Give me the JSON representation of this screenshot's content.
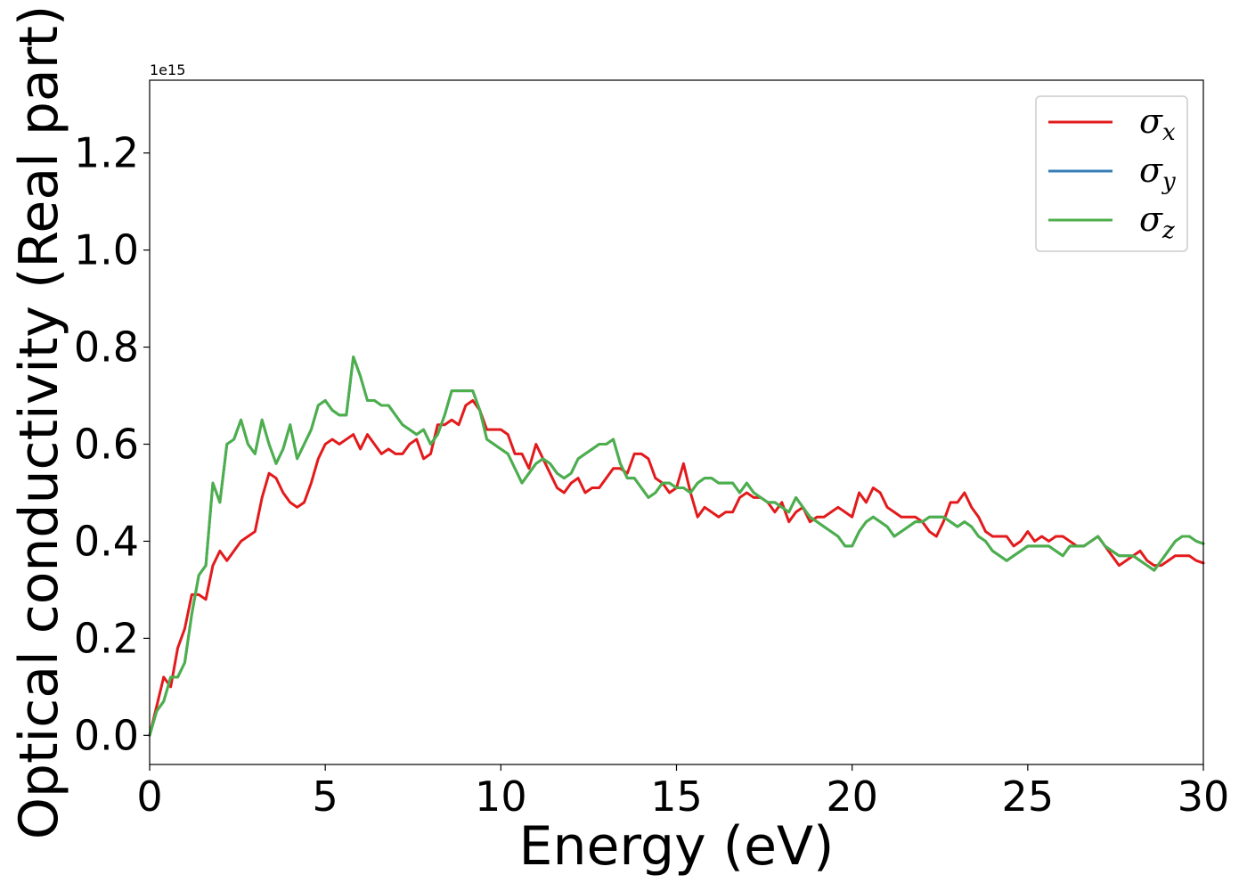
{
  "chart_data": {
    "type": "line",
    "xlabel": "Energy (eV)",
    "ylabel": "Optical conductivity (Real part)",
    "y_offset_text": "1e15",
    "xlim": [
      0,
      30
    ],
    "ylim": [
      -0.06,
      1.35
    ],
    "x_ticks": [
      0,
      5,
      10,
      15,
      20,
      25,
      30
    ],
    "x_tick_labels": [
      "0",
      "5",
      "10",
      "15",
      "20",
      "25",
      "30"
    ],
    "y_ticks": [
      0.0,
      0.2,
      0.4,
      0.6,
      0.8,
      1.0,
      1.2
    ],
    "y_tick_labels": [
      "0.0",
      "0.2",
      "0.4",
      "0.6",
      "0.8",
      "1.0",
      "1.2"
    ],
    "grid": false,
    "legend_position": "top-right",
    "x": [
      0.0,
      0.2,
      0.4,
      0.6,
      0.8,
      1.0,
      1.2,
      1.4,
      1.6,
      1.8,
      2.0,
      2.2,
      2.4,
      2.6,
      2.8,
      3.0,
      3.2,
      3.4,
      3.6,
      3.8,
      4.0,
      4.2,
      4.4,
      4.6,
      4.8,
      5.0,
      5.2,
      5.4,
      5.6,
      5.8,
      6.0,
      6.2,
      6.4,
      6.6,
      6.8,
      7.0,
      7.2,
      7.4,
      7.6,
      7.8,
      8.0,
      8.2,
      8.4,
      8.6,
      8.8,
      9.0,
      9.2,
      9.4,
      9.6,
      9.8,
      10.0,
      10.2,
      10.4,
      10.6,
      10.8,
      11.0,
      11.2,
      11.4,
      11.6,
      11.8,
      12.0,
      12.2,
      12.4,
      12.6,
      12.8,
      13.0,
      13.2,
      13.4,
      13.6,
      13.8,
      14.0,
      14.2,
      14.4,
      14.6,
      14.8,
      15.0,
      15.2,
      15.4,
      15.6,
      15.8,
      16.0,
      16.2,
      16.4,
      16.6,
      16.8,
      17.0,
      17.2,
      17.4,
      17.6,
      17.8,
      18.0,
      18.2,
      18.4,
      18.6,
      18.8,
      19.0,
      19.2,
      19.4,
      19.6,
      19.8,
      20.0,
      20.2,
      20.4,
      20.6,
      20.8,
      21.0,
      21.2,
      21.4,
      21.6,
      21.8,
      22.0,
      22.2,
      22.4,
      22.6,
      22.8,
      23.0,
      23.2,
      23.4,
      23.6,
      23.8,
      24.0,
      24.2,
      24.4,
      24.6,
      24.8,
      25.0,
      25.2,
      25.4,
      25.6,
      25.8,
      26.0,
      26.2,
      26.4,
      26.6,
      26.8,
      27.0,
      27.2,
      27.4,
      27.6,
      27.8,
      28.0,
      28.2,
      28.4,
      28.6,
      28.8,
      29.0,
      29.2,
      29.4,
      29.6,
      29.8,
      30.0
    ],
    "series": [
      {
        "name": "σx",
        "symbol": "σ",
        "subscript": "x",
        "color": "#e31a1c",
        "values": [
          0.0,
          0.06,
          0.12,
          0.1,
          0.18,
          0.22,
          0.29,
          0.29,
          0.28,
          0.35,
          0.38,
          0.36,
          0.38,
          0.4,
          0.41,
          0.42,
          0.49,
          0.54,
          0.53,
          0.5,
          0.48,
          0.47,
          0.48,
          0.52,
          0.57,
          0.6,
          0.61,
          0.6,
          0.61,
          0.62,
          0.59,
          0.62,
          0.6,
          0.58,
          0.59,
          0.58,
          0.58,
          0.6,
          0.61,
          0.57,
          0.58,
          0.64,
          0.64,
          0.65,
          0.64,
          0.68,
          0.69,
          0.67,
          0.63,
          0.63,
          0.63,
          0.62,
          0.58,
          0.58,
          0.55,
          0.6,
          0.57,
          0.54,
          0.51,
          0.5,
          0.52,
          0.53,
          0.5,
          0.51,
          0.51,
          0.53,
          0.55,
          0.55,
          0.54,
          0.58,
          0.58,
          0.57,
          0.53,
          0.52,
          0.5,
          0.51,
          0.56,
          0.5,
          0.45,
          0.47,
          0.46,
          0.45,
          0.46,
          0.46,
          0.49,
          0.5,
          0.49,
          0.49,
          0.48,
          0.46,
          0.48,
          0.44,
          0.46,
          0.47,
          0.44,
          0.45,
          0.45,
          0.46,
          0.47,
          0.46,
          0.45,
          0.5,
          0.48,
          0.51,
          0.5,
          0.47,
          0.46,
          0.45,
          0.45,
          0.45,
          0.44,
          0.42,
          0.41,
          0.44,
          0.48,
          0.48,
          0.5,
          0.47,
          0.45,
          0.42,
          0.41,
          0.41,
          0.41,
          0.39,
          0.4,
          0.42,
          0.4,
          0.41,
          0.4,
          0.41,
          0.41,
          0.4,
          0.39,
          0.39,
          0.4,
          0.41,
          0.39,
          0.37,
          0.35,
          0.36,
          0.37,
          0.38,
          0.36,
          0.35,
          0.35,
          0.36,
          0.37,
          0.37,
          0.37,
          0.36,
          0.355
        ]
      },
      {
        "name": "σy",
        "symbol": "σ",
        "subscript": "y",
        "color": "#377eb8",
        "values": [
          0.0,
          0.05,
          0.07,
          0.12,
          0.12,
          0.15,
          0.25,
          0.33,
          0.35,
          0.52,
          0.48,
          0.6,
          0.61,
          0.65,
          0.6,
          0.58,
          0.65,
          0.6,
          0.56,
          0.59,
          0.64,
          0.57,
          0.6,
          0.63,
          0.68,
          0.69,
          0.67,
          0.66,
          0.66,
          0.78,
          0.74,
          0.69,
          0.69,
          0.68,
          0.68,
          0.66,
          0.64,
          0.63,
          0.62,
          0.63,
          0.6,
          0.62,
          0.66,
          0.71,
          0.71,
          0.71,
          0.71,
          0.67,
          0.61,
          0.6,
          0.59,
          0.58,
          0.55,
          0.52,
          0.54,
          0.56,
          0.57,
          0.56,
          0.54,
          0.53,
          0.54,
          0.57,
          0.58,
          0.59,
          0.6,
          0.6,
          0.61,
          0.56,
          0.53,
          0.53,
          0.51,
          0.49,
          0.5,
          0.52,
          0.52,
          0.51,
          0.51,
          0.5,
          0.52,
          0.53,
          0.53,
          0.52,
          0.52,
          0.52,
          0.5,
          0.52,
          0.5,
          0.49,
          0.48,
          0.48,
          0.47,
          0.46,
          0.49,
          0.47,
          0.45,
          0.44,
          0.43,
          0.42,
          0.41,
          0.39,
          0.39,
          0.42,
          0.44,
          0.45,
          0.44,
          0.43,
          0.41,
          0.42,
          0.43,
          0.44,
          0.44,
          0.45,
          0.45,
          0.45,
          0.44,
          0.43,
          0.44,
          0.43,
          0.41,
          0.4,
          0.38,
          0.37,
          0.36,
          0.37,
          0.38,
          0.39,
          0.39,
          0.39,
          0.39,
          0.38,
          0.37,
          0.39,
          0.39,
          0.39,
          0.4,
          0.41,
          0.39,
          0.38,
          0.37,
          0.37,
          0.37,
          0.36,
          0.35,
          0.34,
          0.36,
          0.38,
          0.4,
          0.41,
          0.41,
          0.4,
          0.395
        ]
      },
      {
        "name": "σz",
        "symbol": "σ",
        "subscript": "z",
        "color": "#4daf4a",
        "values": [
          0.0,
          0.05,
          0.07,
          0.12,
          0.12,
          0.15,
          0.25,
          0.33,
          0.35,
          0.52,
          0.48,
          0.6,
          0.61,
          0.65,
          0.6,
          0.58,
          0.65,
          0.6,
          0.56,
          0.59,
          0.64,
          0.57,
          0.6,
          0.63,
          0.68,
          0.69,
          0.67,
          0.66,
          0.66,
          0.78,
          0.74,
          0.69,
          0.69,
          0.68,
          0.68,
          0.66,
          0.64,
          0.63,
          0.62,
          0.63,
          0.6,
          0.62,
          0.66,
          0.71,
          0.71,
          0.71,
          0.71,
          0.67,
          0.61,
          0.6,
          0.59,
          0.58,
          0.55,
          0.52,
          0.54,
          0.56,
          0.57,
          0.56,
          0.54,
          0.53,
          0.54,
          0.57,
          0.58,
          0.59,
          0.6,
          0.6,
          0.61,
          0.56,
          0.53,
          0.53,
          0.51,
          0.49,
          0.5,
          0.52,
          0.52,
          0.51,
          0.51,
          0.5,
          0.52,
          0.53,
          0.53,
          0.52,
          0.52,
          0.52,
          0.5,
          0.52,
          0.5,
          0.49,
          0.48,
          0.48,
          0.47,
          0.46,
          0.49,
          0.47,
          0.45,
          0.44,
          0.43,
          0.42,
          0.41,
          0.39,
          0.39,
          0.42,
          0.44,
          0.45,
          0.44,
          0.43,
          0.41,
          0.42,
          0.43,
          0.44,
          0.44,
          0.45,
          0.45,
          0.45,
          0.44,
          0.43,
          0.44,
          0.43,
          0.41,
          0.4,
          0.38,
          0.37,
          0.36,
          0.37,
          0.38,
          0.39,
          0.39,
          0.39,
          0.39,
          0.38,
          0.37,
          0.39,
          0.39,
          0.39,
          0.4,
          0.41,
          0.39,
          0.38,
          0.37,
          0.37,
          0.37,
          0.36,
          0.35,
          0.34,
          0.36,
          0.38,
          0.4,
          0.41,
          0.41,
          0.4,
          0.395
        ]
      }
    ]
  }
}
